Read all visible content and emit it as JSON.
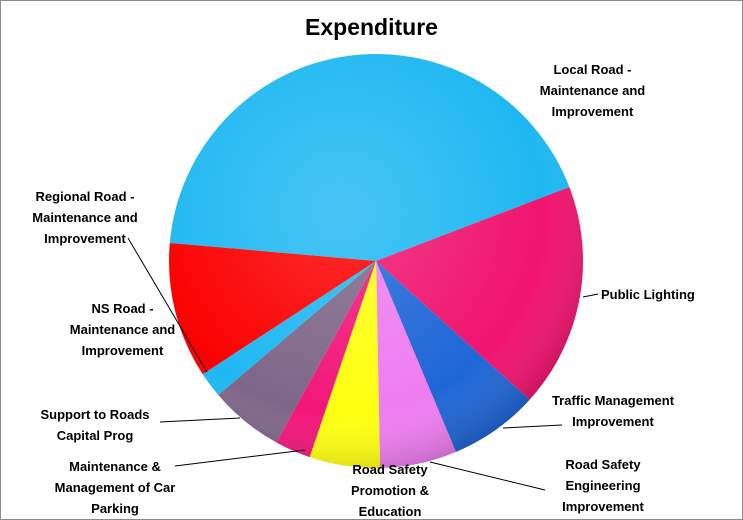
{
  "chart_data": {
    "type": "pie",
    "title": "Expenditure",
    "categories": [
      "Local Road - Maintenance and Improvement",
      "Public Lighting",
      "Traffic Management Improvement",
      "Road Safety Engineering Improvement",
      "Road Safety Promotion & Education",
      "Maintenance & Management of Car Parking",
      "Support to Roads Capital Prog",
      "Regional Road - Maintenance and Improvement",
      "NS Road - Maintenance and Improvement"
    ],
    "values": [
      42.8,
      17.5,
      7,
      6,
      5.5,
      2.8,
      5.8,
      2,
      10.6
    ],
    "colors": [
      "#1fb8f2",
      "#f0146e",
      "#1f66d6",
      "#ee7df0",
      "#ffff12",
      "#f2177a",
      "#7e6688",
      "#1fb8f2",
      "#fb0000"
    ]
  }
}
